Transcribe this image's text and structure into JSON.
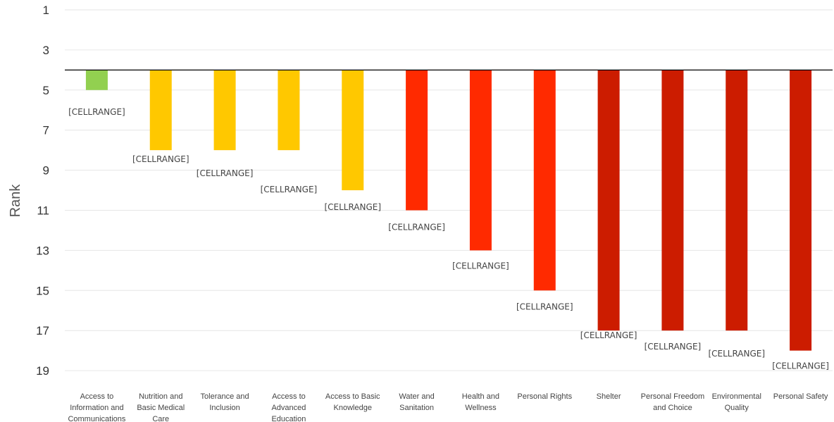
{
  "chart_data": {
    "type": "bar",
    "title": "",
    "xlabel": "",
    "ylabel": "Rank",
    "y_axis_inverted": true,
    "ylim": [
      1,
      19.5
    ],
    "y_ticks": [
      1,
      3,
      5,
      7,
      9,
      11,
      13,
      15,
      17,
      19
    ],
    "baseline": 4,
    "grid": true,
    "legend": "none",
    "categories": [
      "Access to Information and Communications",
      "Nutrition and Basic Medical Care",
      "Tolerance and Inclusion",
      "Access to Advanced Education",
      "Access to Basic Knowledge",
      "Water and Sanitation",
      "Health and Wellness",
      "Personal Rights",
      "Shelter",
      "Personal Freedom and Choice",
      "Environmental Quality",
      "Personal Safety"
    ],
    "values": [
      5,
      8,
      8,
      8,
      10,
      11,
      13,
      15,
      17,
      17,
      17,
      18
    ],
    "colors": [
      "#92d050",
      "#ffc800",
      "#ffc800",
      "#ffc800",
      "#ffc800",
      "#ff2a00",
      "#ff2a00",
      "#ff2a00",
      "#cc1c00",
      "#cc1c00",
      "#cc1c00",
      "#cc1c00"
    ],
    "data_labels": [
      "[CELLRANGE]",
      "[CELLRANGE]",
      "[CELLRANGE]",
      "[CELLRANGE]",
      "[CELLRANGE]",
      "[CELLRANGE]",
      "[CELLRANGE]",
      "[CELLRANGE]",
      "[CELLRANGE]",
      "[CELLRANGE]",
      "[CELLRANGE]",
      "[CELLRANGE]"
    ]
  }
}
